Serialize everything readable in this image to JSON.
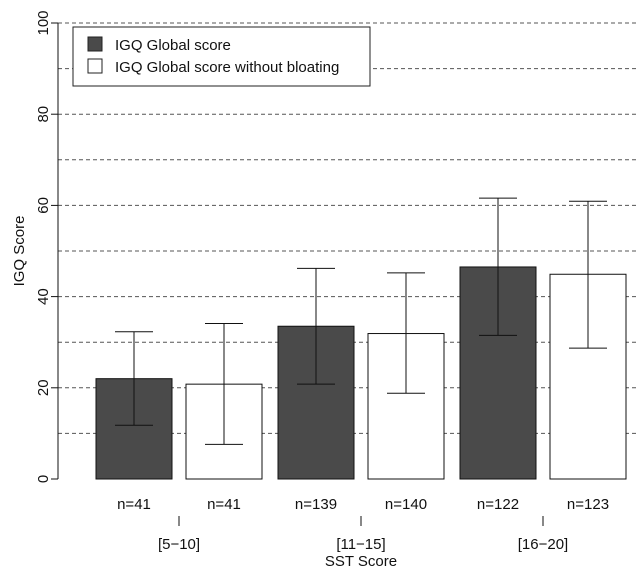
{
  "chart_data": {
    "type": "bar",
    "ylabel": "IGQ Score",
    "xlabel": "SST Score",
    "ylim": [
      0,
      100
    ],
    "yticks": [
      0,
      20,
      40,
      60,
      80,
      100
    ],
    "gridlines": [
      10,
      20,
      30,
      40,
      50,
      60,
      70,
      80,
      90,
      100
    ],
    "grid": true,
    "legend_position": "top-left",
    "groups": [
      "[5−10]",
      "[11−15]",
      "[16−20]"
    ],
    "series": [
      {
        "name": "IGQ Global score",
        "color": "#4a4a4a",
        "values": [
          22,
          33.5,
          46.5
        ],
        "error_low": [
          11.8,
          20.8,
          31.5
        ],
        "error_high": [
          32.3,
          46.2,
          61.6
        ],
        "n_labels": [
          "n=41",
          "n=139",
          "n=122"
        ]
      },
      {
        "name": "IGQ Global score without bloating",
        "color": "#ffffff",
        "values": [
          20.8,
          31.9,
          44.9
        ],
        "error_low": [
          7.6,
          18.8,
          28.7
        ],
        "error_high": [
          34.1,
          45.2,
          60.9
        ],
        "n_labels": [
          "n=41",
          "n=140",
          "n=123"
        ]
      }
    ]
  }
}
